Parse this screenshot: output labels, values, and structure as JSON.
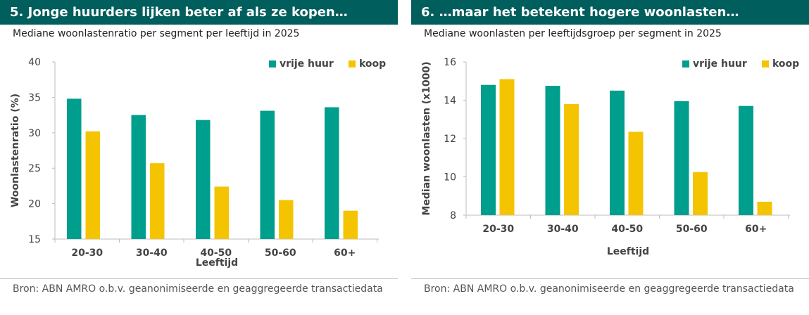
{
  "colors": {
    "header_bg": "#005e5d",
    "teal": "#009e8c",
    "yellow": "#f5c400"
  },
  "panels": [
    {
      "title": "5. Jonge huurders lijken beter af als ze kopen…",
      "subtitle": "Mediane woonlastenratio per segment per leeftijd in 2025",
      "source": "Bron: ABN AMRO o.b.v. geanonimiseerde en geaggregeerde transactiedata"
    },
    {
      "title": "6.  …maar het betekent hogere woonlasten…",
      "subtitle": "Mediane woonlasten per leeftijdsgroep per segment in 2025",
      "source": "Bron: ABN AMRO o.b.v. geanonimiseerde en geaggregeerde transactiedata"
    }
  ],
  "chart_data": [
    {
      "type": "bar",
      "categories": [
        "20-30",
        "30-40",
        "40-50",
        "50-60",
        "60+"
      ],
      "series": [
        {
          "name": "vrije huur",
          "color": "#009e8c",
          "values": [
            34.8,
            32.5,
            31.8,
            33.1,
            33.6
          ]
        },
        {
          "name": "koop",
          "color": "#f5c400",
          "values": [
            30.2,
            25.7,
            22.4,
            20.5,
            19.0
          ]
        }
      ],
      "title": "5. Jonge huurders lijken beter af als ze kopen…",
      "xlabel": "Leeftijd",
      "ylabel": "Woonlastenratio (%)",
      "ylim": [
        15,
        40
      ],
      "yticks": [
        15,
        20,
        25,
        30,
        35,
        40
      ],
      "grid": false,
      "legend": "top-right"
    },
    {
      "type": "bar",
      "categories": [
        "20-30",
        "30-40",
        "40-50",
        "50-60",
        "60+"
      ],
      "series": [
        {
          "name": "vrije huur",
          "color": "#009e8c",
          "values": [
            14.8,
            14.75,
            14.5,
            13.95,
            13.7
          ]
        },
        {
          "name": "koop",
          "color": "#f5c400",
          "values": [
            15.1,
            13.8,
            12.35,
            10.25,
            8.7
          ]
        }
      ],
      "title": "6.  …maar het betekent hogere woonlasten…",
      "xlabel": "Leeftijd",
      "ylabel": "Median woonlasten (x1000)",
      "ylim": [
        8,
        16
      ],
      "yticks": [
        8,
        10,
        12,
        14,
        16
      ],
      "grid": false,
      "legend": "top-right"
    }
  ]
}
